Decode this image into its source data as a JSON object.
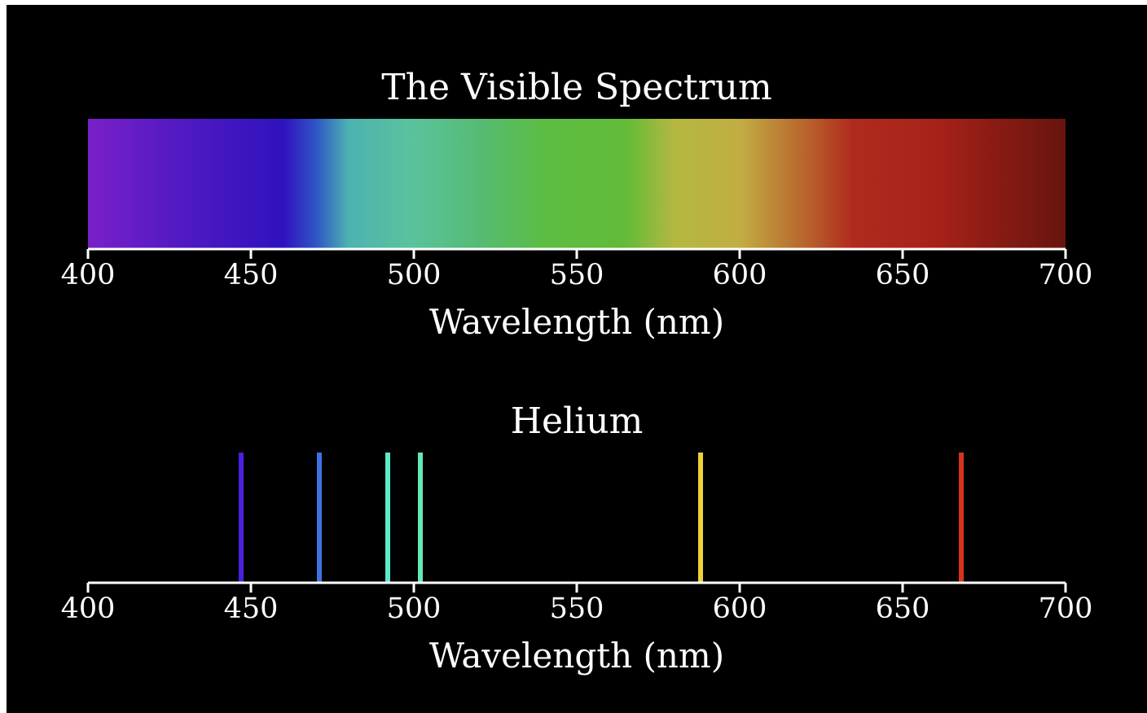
{
  "chart_data": [
    {
      "type": "gradient-bar",
      "title": "The Visible Spectrum",
      "xlabel": "Wavelength (nm)",
      "xlim": [
        400,
        700
      ],
      "ticks": [
        400,
        450,
        500,
        550,
        600,
        650,
        700
      ],
      "tick_labels": [
        "400",
        "450",
        "500",
        "550",
        "600",
        "650",
        "700"
      ],
      "color_stops": [
        {
          "wavelength": 400,
          "color": "#7a20c8"
        },
        {
          "wavelength": 430,
          "color": "#4f19c2"
        },
        {
          "wavelength": 460,
          "color": "#3012be"
        },
        {
          "wavelength": 470,
          "color": "#2f55c6"
        },
        {
          "wavelength": 480,
          "color": "#4db3b1"
        },
        {
          "wavelength": 500,
          "color": "#5ac39b"
        },
        {
          "wavelength": 520,
          "color": "#55bb74"
        },
        {
          "wavelength": 540,
          "color": "#5cbd42"
        },
        {
          "wavelength": 565,
          "color": "#62bb38"
        },
        {
          "wavelength": 580,
          "color": "#b4b841"
        },
        {
          "wavelength": 600,
          "color": "#c2ad43"
        },
        {
          "wavelength": 620,
          "color": "#b8652c"
        },
        {
          "wavelength": 635,
          "color": "#b02a1e"
        },
        {
          "wavelength": 660,
          "color": "#a72219"
        },
        {
          "wavelength": 700,
          "color": "#67140e"
        }
      ]
    },
    {
      "type": "emission-lines",
      "title": "Helium",
      "xlabel": "Wavelength (nm)",
      "xlim": [
        400,
        700
      ],
      "ticks": [
        400,
        450,
        500,
        550,
        600,
        650,
        700
      ],
      "tick_labels": [
        "400",
        "450",
        "500",
        "550",
        "600",
        "650",
        "700"
      ],
      "lines": [
        {
          "wavelength": 447,
          "color": "#4a1fe0"
        },
        {
          "wavelength": 471,
          "color": "#3f72e0"
        },
        {
          "wavelength": 492,
          "color": "#5ee8c8"
        },
        {
          "wavelength": 502,
          "color": "#64e8b4"
        },
        {
          "wavelength": 588,
          "color": "#ecd33a"
        },
        {
          "wavelength": 668,
          "color": "#d8331e"
        }
      ]
    }
  ]
}
